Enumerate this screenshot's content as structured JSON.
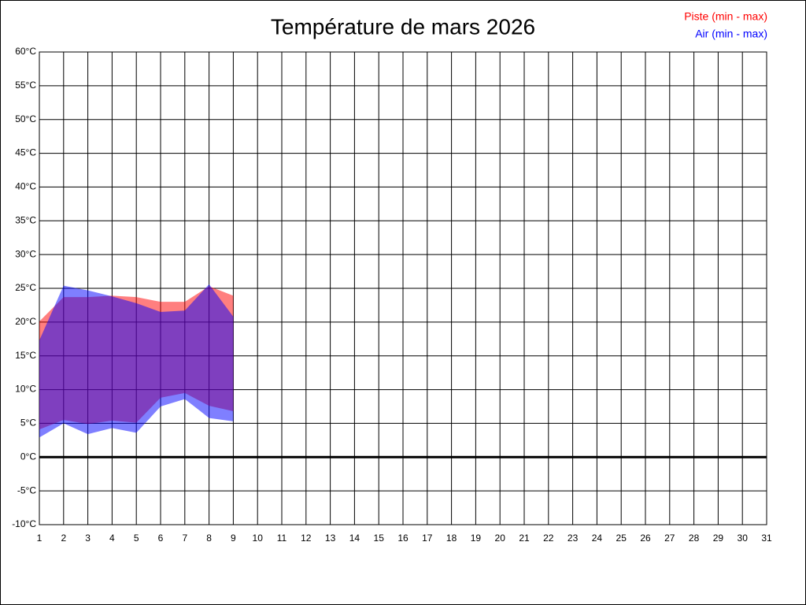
{
  "chart_data": {
    "type": "range-area",
    "title": "Température de mars 2026",
    "x": [
      1,
      2,
      3,
      4,
      5,
      6,
      7,
      8,
      9
    ],
    "series": [
      {
        "name": "Piste (min - max)",
        "color": "#ff0000",
        "min": [
          4.1,
          5.5,
          4.9,
          5.4,
          5.1,
          8.8,
          9.5,
          7.6,
          6.8
        ],
        "max": [
          20.1,
          23.7,
          23.7,
          23.9,
          23.7,
          23.0,
          23.0,
          25.3,
          23.9
        ]
      },
      {
        "name": "Air (min - max)",
        "color": "#0000ff",
        "min": [
          2.9,
          5.0,
          3.4,
          4.3,
          3.6,
          7.5,
          8.6,
          5.8,
          5.3
        ],
        "max": [
          17.3,
          25.4,
          24.7,
          23.8,
          22.8,
          21.5,
          21.7,
          25.6,
          20.8
        ]
      }
    ],
    "xlim": [
      1,
      31
    ],
    "xticks": [
      1,
      2,
      3,
      4,
      5,
      6,
      7,
      8,
      9,
      10,
      11,
      12,
      13,
      14,
      15,
      16,
      17,
      18,
      19,
      20,
      21,
      22,
      23,
      24,
      25,
      26,
      27,
      28,
      29,
      30,
      31
    ],
    "ylim": [
      -10,
      60
    ],
    "yticks": [
      {
        "value": -10,
        "label": "-10°C"
      },
      {
        "value": -5,
        "label": "-5°C"
      },
      {
        "value": 0,
        "label": "0°C"
      },
      {
        "value": 5,
        "label": "5°C"
      },
      {
        "value": 10,
        "label": "10°C"
      },
      {
        "value": 15,
        "label": "15°C"
      },
      {
        "value": 20,
        "label": "20°C"
      },
      {
        "value": 25,
        "label": "25°C"
      },
      {
        "value": 30,
        "label": "30°C"
      },
      {
        "value": 35,
        "label": "35°C"
      },
      {
        "value": 40,
        "label": "40°C"
      },
      {
        "value": 45,
        "label": "45°C"
      },
      {
        "value": 50,
        "label": "50°C"
      },
      {
        "value": 55,
        "label": "55°C"
      },
      {
        "value": 60,
        "label": "60°C"
      }
    ],
    "grid": true,
    "legend": "top-right"
  }
}
